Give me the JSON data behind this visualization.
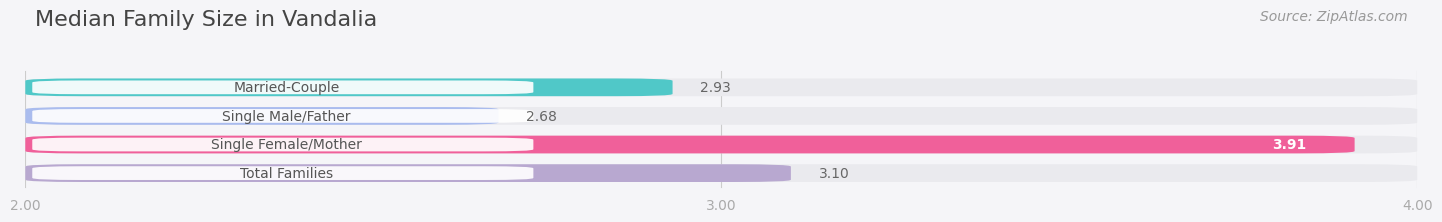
{
  "title": "Median Family Size in Vandalia",
  "source": "Source: ZipAtlas.com",
  "categories": [
    "Married-Couple",
    "Single Male/Father",
    "Single Female/Mother",
    "Total Families"
  ],
  "values": [
    2.93,
    2.68,
    3.91,
    3.1
  ],
  "bar_colors": [
    "#50c8c8",
    "#aabcee",
    "#f0609a",
    "#b8a8d0"
  ],
  "bar_bg_color": "#eaeaee",
  "value_text_colors": [
    "#666666",
    "#666666",
    "#ffffff",
    "#666666"
  ],
  "xlim": [
    2.0,
    4.0
  ],
  "xticks": [
    2.0,
    3.0,
    4.0
  ],
  "xtick_labels": [
    "2.00",
    "3.00",
    "4.00"
  ],
  "title_fontsize": 16,
  "source_fontsize": 10,
  "label_fontsize": 10,
  "value_fontsize": 10,
  "title_color": "#444444",
  "source_color": "#999999",
  "label_color": "#555555",
  "tick_color": "#aaaaaa",
  "background_color": "#f5f5f8",
  "grid_color": "#cccccc"
}
